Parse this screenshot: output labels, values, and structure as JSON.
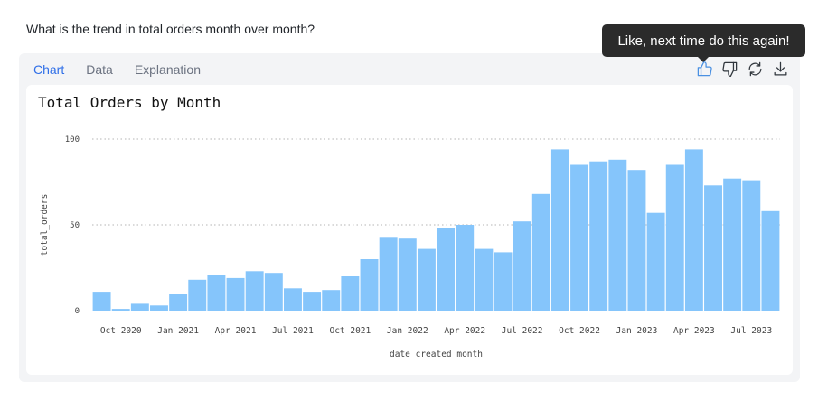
{
  "question": "What is the trend in total orders month over month?",
  "tabs": [
    {
      "label": "Chart",
      "active": true
    },
    {
      "label": "Data",
      "active": false
    },
    {
      "label": "Explanation",
      "active": false
    }
  ],
  "actions": [
    {
      "icon": "thumbs-up-icon"
    },
    {
      "icon": "thumbs-down-icon"
    },
    {
      "icon": "refresh-icon"
    },
    {
      "icon": "download-icon"
    }
  ],
  "tooltip": "Like, next time do this again!",
  "colors": {
    "accent": "#2f6fe8",
    "bar": "#85c5fb",
    "tooltip_bg": "#2b2b2b"
  },
  "chart_data": {
    "type": "bar",
    "title": "Total Orders by Month",
    "xlabel": "date_created_month",
    "ylabel": "total_orders",
    "ylim": [
      0,
      100
    ],
    "yticks": [
      0,
      50,
      100
    ],
    "grid": "horizontal dotted",
    "categories": [
      "2020-09",
      "2020-10",
      "2020-11",
      "2020-12",
      "2021-01",
      "2021-02",
      "2021-03",
      "2021-04",
      "2021-05",
      "2021-06",
      "2021-07",
      "2021-08",
      "2021-09",
      "2021-10",
      "2021-11",
      "2021-12",
      "2022-01",
      "2022-02",
      "2022-03",
      "2022-04",
      "2022-05",
      "2022-06",
      "2022-07",
      "2022-08",
      "2022-09",
      "2022-10",
      "2022-11",
      "2022-12",
      "2023-01",
      "2023-02",
      "2023-03",
      "2023-04",
      "2023-05",
      "2023-06",
      "2023-07",
      "2023-08"
    ],
    "values": [
      11,
      1,
      4,
      3,
      10,
      18,
      21,
      19,
      23,
      22,
      13,
      11,
      12,
      20,
      30,
      43,
      42,
      36,
      48,
      50,
      36,
      34,
      52,
      68,
      94,
      85,
      87,
      88,
      82,
      57,
      85,
      94,
      73,
      77,
      76,
      58
    ],
    "xtick_labels": [
      "Oct 2020",
      "Jan 2021",
      "Apr 2021",
      "Jul 2021",
      "Oct 2021",
      "Jan 2022",
      "Apr 2022",
      "Jul 2022",
      "Oct 2022",
      "Jan 2023",
      "Apr 2023",
      "Jul 2023"
    ]
  }
}
